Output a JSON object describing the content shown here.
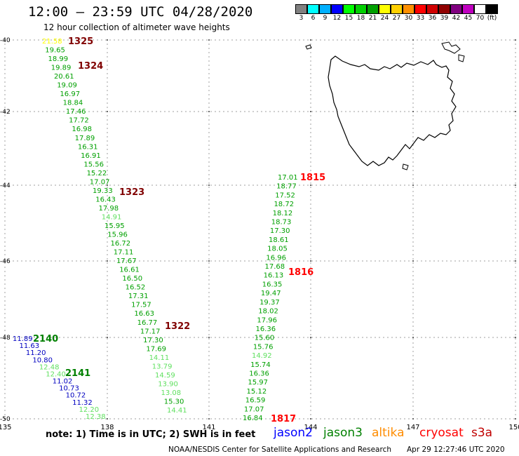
{
  "header": {
    "title": "12:00 – 23:59 UTC 04/28/2020",
    "subtitle": "12 hour collection of altimeter wave heights"
  },
  "color_scale": {
    "colors": [
      "#808080",
      "#00ffff",
      "#00b0ff",
      "#0000ff",
      "#00ff00",
      "#00d000",
      "#00a000",
      "#ffff00",
      "#ffd000",
      "#ff9000",
      "#ff0000",
      "#d00000",
      "#900000",
      "#800080",
      "#c000c0",
      "#ffffff",
      "#000000"
    ],
    "labels": [
      "3",
      "6",
      "9",
      "12",
      "15",
      "18",
      "21",
      "24",
      "27",
      "30",
      "33",
      "36",
      "39",
      "42",
      "45",
      "70",
      "(ft)"
    ]
  },
  "map": {
    "lon_ticks": [
      "135",
      "138",
      "141",
      "144",
      "147",
      "150"
    ],
    "lat_ticks": [
      "-40",
      "-42",
      "-44",
      "-46",
      "-48",
      "-50"
    ]
  },
  "passes": [
    {
      "label": "1325",
      "color": "#800000"
    },
    {
      "label": "1324",
      "color": "#800000"
    },
    {
      "label": "1323",
      "color": "#800000"
    },
    {
      "label": "1322",
      "color": "#800000"
    },
    {
      "label": "1815",
      "color": "#ff0000"
    },
    {
      "label": "1816",
      "color": "#ff0000"
    },
    {
      "label": "1817",
      "color": "#ff0000"
    },
    {
      "label": "2140",
      "color": "#008000"
    },
    {
      "label": "2141",
      "color": "#008000"
    }
  ],
  "track_a": [
    {
      "v": "21.58",
      "c": "#ffff00"
    },
    {
      "v": "19.65",
      "c": "#00a000"
    },
    {
      "v": "18.99",
      "c": "#00a000"
    },
    {
      "v": "19.89",
      "c": "#00a000"
    },
    {
      "v": "20.61",
      "c": "#00a000"
    },
    {
      "v": "19.09",
      "c": "#00a000"
    },
    {
      "v": "16.97",
      "c": "#00a000"
    },
    {
      "v": "18.84",
      "c": "#00a000"
    },
    {
      "v": "17.46",
      "c": "#00a000"
    },
    {
      "v": "17.72",
      "c": "#00a000"
    },
    {
      "v": "16.98",
      "c": "#00a000"
    },
    {
      "v": "17.89",
      "c": "#00a000"
    },
    {
      "v": "16.31",
      "c": "#00a000"
    },
    {
      "v": "16.91",
      "c": "#00a000"
    },
    {
      "v": "15.56",
      "c": "#00a000"
    },
    {
      "v": "15.22",
      "c": "#00a000"
    },
    {
      "v": "17.07",
      "c": "#00a000"
    },
    {
      "v": "19.33",
      "c": "#00a000"
    },
    {
      "v": "16.43",
      "c": "#00a000"
    },
    {
      "v": "17.98",
      "c": "#00a000"
    },
    {
      "v": "14.91",
      "c": "#60e060"
    },
    {
      "v": "15.95",
      "c": "#00a000"
    },
    {
      "v": "15.96",
      "c": "#00a000"
    },
    {
      "v": "16.72",
      "c": "#00a000"
    },
    {
      "v": "17.11",
      "c": "#00a000"
    },
    {
      "v": "17.67",
      "c": "#00a000"
    },
    {
      "v": "16.61",
      "c": "#00a000"
    },
    {
      "v": "16.50",
      "c": "#00a000"
    },
    {
      "v": "16.52",
      "c": "#00a000"
    },
    {
      "v": "17.31",
      "c": "#00a000"
    },
    {
      "v": "17.57",
      "c": "#00a000"
    },
    {
      "v": "16.63",
      "c": "#00a000"
    },
    {
      "v": "16.77",
      "c": "#00a000"
    },
    {
      "v": "17.17",
      "c": "#00a000"
    },
    {
      "v": "17.30",
      "c": "#00a000"
    },
    {
      "v": "17.69",
      "c": "#00a000"
    },
    {
      "v": "14.11",
      "c": "#60e060"
    },
    {
      "v": "13.79",
      "c": "#60e060"
    },
    {
      "v": "14.59",
      "c": "#60e060"
    },
    {
      "v": "13.90",
      "c": "#60e060"
    },
    {
      "v": "13.08",
      "c": "#60e060"
    },
    {
      "v": "15.30",
      "c": "#00a000"
    },
    {
      "v": "14.41",
      "c": "#60e060"
    }
  ],
  "track_b": [
    {
      "v": "17.01",
      "c": "#00a000"
    },
    {
      "v": "18.77",
      "c": "#00a000"
    },
    {
      "v": "17.52",
      "c": "#00a000"
    },
    {
      "v": "18.72",
      "c": "#00a000"
    },
    {
      "v": "18.12",
      "c": "#00a000"
    },
    {
      "v": "18.73",
      "c": "#00a000"
    },
    {
      "v": "17.30",
      "c": "#00a000"
    },
    {
      "v": "18.61",
      "c": "#00a000"
    },
    {
      "v": "18.05",
      "c": "#00a000"
    },
    {
      "v": "16.96",
      "c": "#00a000"
    },
    {
      "v": "17.68",
      "c": "#00a000"
    },
    {
      "v": "16.13",
      "c": "#00a000"
    },
    {
      "v": "16.35",
      "c": "#00a000"
    },
    {
      "v": "19.47",
      "c": "#00a000"
    },
    {
      "v": "19.37",
      "c": "#00a000"
    },
    {
      "v": "18.02",
      "c": "#00a000"
    },
    {
      "v": "17.96",
      "c": "#00a000"
    },
    {
      "v": "16.36",
      "c": "#00a000"
    },
    {
      "v": "15.60",
      "c": "#00a000"
    },
    {
      "v": "15.76",
      "c": "#00a000"
    },
    {
      "v": "14.92",
      "c": "#60e060"
    },
    {
      "v": "15.74",
      "c": "#00a000"
    },
    {
      "v": "16.36",
      "c": "#00a000"
    },
    {
      "v": "15.97",
      "c": "#00a000"
    },
    {
      "v": "15.12",
      "c": "#00a000"
    },
    {
      "v": "16.59",
      "c": "#00a000"
    },
    {
      "v": "17.07",
      "c": "#00a000"
    },
    {
      "v": "16.84",
      "c": "#00a000"
    }
  ],
  "track_c": [
    {
      "v": "11.89",
      "c": "#0000c0"
    },
    {
      "v": "11.63",
      "c": "#0000c0"
    },
    {
      "v": "11.20",
      "c": "#0000c0"
    },
    {
      "v": "10.80",
      "c": "#0000c0"
    },
    {
      "v": "12.48",
      "c": "#60e060"
    },
    {
      "v": "12.40",
      "c": "#60e060"
    },
    {
      "v": "11.02",
      "c": "#0000c0"
    },
    {
      "v": "10.73",
      "c": "#0000c0"
    },
    {
      "v": "10.72",
      "c": "#0000c0"
    },
    {
      "v": "11.32",
      "c": "#0000c0"
    },
    {
      "v": "12.20",
      "c": "#60e060"
    },
    {
      "v": "12.38",
      "c": "#60e060"
    }
  ],
  "footer": {
    "note": "note:  1) Time is in UTC;  2) SWH is in feet",
    "credit": "NOAA/NESDIS Center for Satellite Applications and Research",
    "stamp": "Apr 29 12:27:46 UTC 2020"
  },
  "satellites": [
    {
      "name": "jason2",
      "color": "#0000ff"
    },
    {
      "name": "jason3",
      "color": "#008000"
    },
    {
      "name": "altika",
      "color": "#ff8c00"
    },
    {
      "name": "cryosat",
      "color": "#ff0000"
    },
    {
      "name": "s3a",
      "color": "#c00000"
    }
  ]
}
